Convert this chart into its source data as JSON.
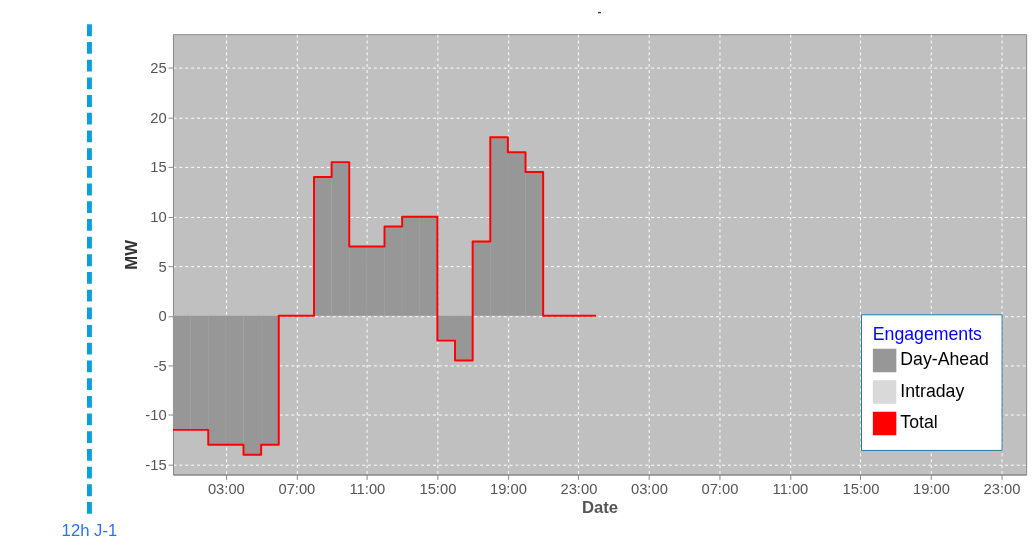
{
  "chart_data": {
    "type": "bar",
    "title": "-",
    "xlabel": "Date",
    "ylabel": "MW",
    "legend_title": "Engagements",
    "series": [
      {
        "name": "Day-Ahead",
        "color": "#979797",
        "x": [
          "2000-01-01T00:30",
          "2000-01-01T01:30",
          "2000-01-01T02:30",
          "2000-01-01T03:30",
          "2000-01-01T04:30",
          "2000-01-01T05:30",
          "2000-01-01T06:30",
          "2000-01-01T07:30",
          "2000-01-01T08:30",
          "2000-01-01T09:30",
          "2000-01-01T10:30",
          "2000-01-01T11:30",
          "2000-01-01T12:30",
          "2000-01-01T13:30",
          "2000-01-01T14:30",
          "2000-01-01T15:30",
          "2000-01-01T16:30",
          "2000-01-01T17:30",
          "2000-01-01T18:30",
          "2000-01-01T19:30",
          "2000-01-01T20:30",
          "2000-01-01T21:30",
          "2000-01-01T22:30",
          "2000-01-01T23:30"
        ],
        "values": [
          -11.5,
          -11.5,
          -13,
          -13,
          -14,
          -13,
          0,
          0,
          14,
          15.5,
          7,
          7,
          9,
          10,
          10,
          -2.5,
          -4.5,
          7.5,
          18,
          16.5,
          14.5,
          0,
          0,
          0
        ]
      },
      {
        "name": "Intraday",
        "color": "#d9d9d9",
        "values": [
          null,
          null,
          null,
          null,
          null,
          null,
          null,
          null,
          null,
          null,
          null,
          null,
          null,
          null,
          null,
          null,
          null,
          null,
          null,
          null,
          null,
          null,
          null,
          null
        ]
      },
      {
        "name": "Total",
        "type": "step",
        "color": "#ff0000",
        "x": [
          "2000-01-01T00:00",
          "2000-01-01T01:00",
          "2000-01-01T02:00",
          "2000-01-01T03:00",
          "2000-01-01T04:00",
          "2000-01-01T05:00",
          "2000-01-01T06:00",
          "2000-01-01T07:00",
          "2000-01-01T08:00",
          "2000-01-01T09:00",
          "2000-01-01T10:00",
          "2000-01-01T11:00",
          "2000-01-01T12:00",
          "2000-01-01T13:00",
          "2000-01-01T14:00",
          "2000-01-01T15:00",
          "2000-01-01T16:00",
          "2000-01-01T17:00",
          "2000-01-01T18:00",
          "2000-01-01T19:00",
          "2000-01-01T20:00",
          "2000-01-01T21:00",
          "2000-01-01T22:00",
          "2000-01-01T23:00",
          "2000-01-02T00:00"
        ],
        "values": [
          -11.5,
          -11.5,
          -13,
          -13,
          -14,
          -13,
          0,
          0,
          14,
          15.5,
          7,
          7,
          9,
          10,
          10,
          -2.5,
          -4.5,
          7.5,
          18,
          16.5,
          14.5,
          0,
          0,
          0,
          0
        ]
      }
    ],
    "xlim": [
      "2000-01-01T00:00",
      "2000-01-03T00:24"
    ],
    "xticks": [
      {
        "value": "2000-01-01T03:00",
        "label": "03:00"
      },
      {
        "value": "2000-01-01T07:00",
        "label": "07:00"
      },
      {
        "value": "2000-01-01T11:00",
        "label": "11:00"
      },
      {
        "value": "2000-01-01T15:00",
        "label": "15:00"
      },
      {
        "value": "2000-01-01T19:00",
        "label": "19:00"
      },
      {
        "value": "2000-01-01T23:00",
        "label": "23:00"
      },
      {
        "value": "2000-01-02T03:00",
        "label": "03:00"
      },
      {
        "value": "2000-01-02T07:00",
        "label": "07:00"
      },
      {
        "value": "2000-01-02T11:00",
        "label": "11:00"
      },
      {
        "value": "2000-01-02T15:00",
        "label": "15:00"
      },
      {
        "value": "2000-01-02T19:00",
        "label": "19:00"
      },
      {
        "value": "2000-01-02T23:00",
        "label": "23:00"
      }
    ],
    "ylim": [
      -16,
      28.4
    ],
    "yticks": [
      -15,
      -10,
      -5,
      0,
      5,
      10,
      15,
      20,
      25
    ],
    "grid": true,
    "legend": "bottom right",
    "line_style": "solid",
    "annotations": [
      "12h J-1"
    ]
  }
}
